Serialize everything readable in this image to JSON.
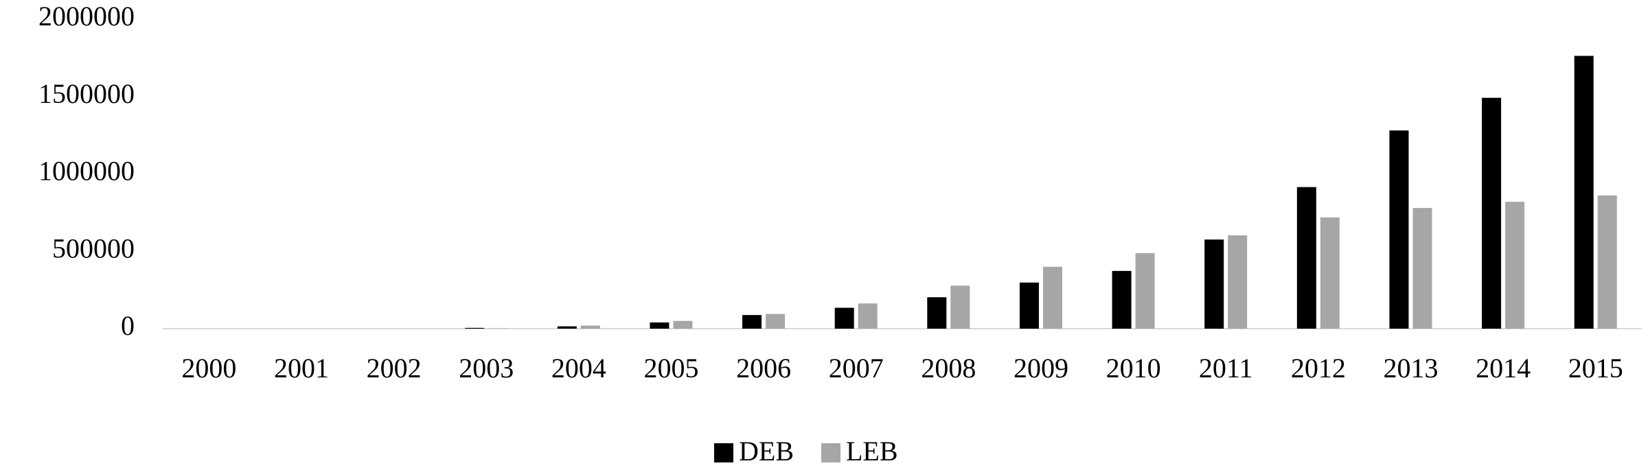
{
  "chart_data": {
    "type": "bar",
    "categories": [
      "2000",
      "2001",
      "2002",
      "2003",
      "2004",
      "2005",
      "2006",
      "2007",
      "2008",
      "2009",
      "2010",
      "2011",
      "2012",
      "2013",
      "2014",
      "2015"
    ],
    "series": [
      {
        "name": "DEB",
        "color": "#000000",
        "values": [
          0,
          0,
          0,
          5000,
          15000,
          40000,
          88000,
          135000,
          203000,
          298000,
          373000,
          576000,
          915000,
          1281000,
          1492000,
          1763000
        ]
      },
      {
        "name": "LEB",
        "color": "#a6a6a6",
        "values": [
          0,
          0,
          0,
          2000,
          20000,
          50000,
          95000,
          163000,
          278000,
          400000,
          488000,
          603000,
          719000,
          780000,
          820000,
          861000
        ]
      }
    ],
    "ylim": [
      0,
      2000000
    ],
    "yticks": [
      0,
      500000,
      1000000,
      1500000,
      2000000
    ],
    "grid": false,
    "legend": "bottom"
  }
}
